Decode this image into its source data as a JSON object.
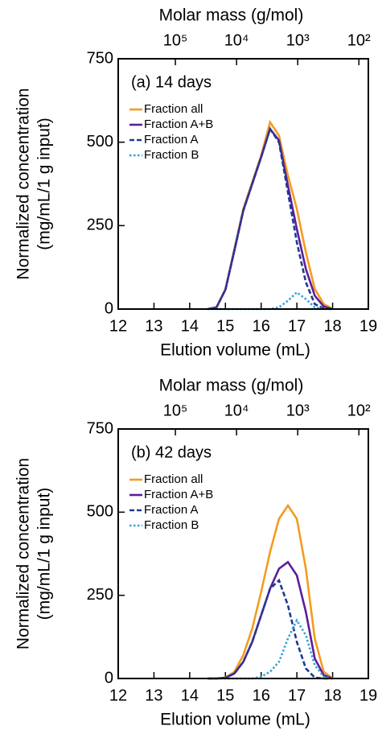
{
  "chart_data": [
    {
      "type": "line",
      "annotation": "(a) 14 days",
      "xlabel": "Elution volume (mL)",
      "ylabel": [
        "Normalized concentration",
        "(mg/mL/1 g input)"
      ],
      "x2label": "Molar mass (g/mol)",
      "x2scale": "log",
      "xlim": [
        12,
        19
      ],
      "xticks": [
        12,
        13,
        14,
        15,
        16,
        17,
        18,
        19
      ],
      "x2lim": [
        860000,
        70
      ],
      "x2ticks": [
        {
          "value": 100000,
          "label": "10⁵"
        },
        {
          "value": 10000,
          "label": "10⁴"
        },
        {
          "value": 1000,
          "label": "10³"
        },
        {
          "value": 100,
          "label": "10²"
        }
      ],
      "ylim": [
        0,
        750
      ],
      "yticks": [
        0,
        250,
        500,
        750
      ],
      "x": [
        14.5,
        14.75,
        15.0,
        15.25,
        15.5,
        15.75,
        16.0,
        16.25,
        16.5,
        16.75,
        17.0,
        17.25,
        17.5,
        17.75,
        18.0
      ],
      "series": [
        {
          "name": "Fraction all",
          "color": "#f39c1f",
          "dash": "solid",
          "values": [
            0,
            5,
            60,
            180,
            300,
            380,
            460,
            560,
            520,
            400,
            300,
            170,
            60,
            15,
            0
          ]
        },
        {
          "name": "Fraction A+B",
          "color": "#5b1f99",
          "dash": "solid",
          "values": [
            0,
            5,
            58,
            175,
            295,
            375,
            455,
            540,
            505,
            370,
            240,
            120,
            40,
            8,
            0
          ]
        },
        {
          "name": "Fraction A",
          "color": "#1f3a93",
          "dash": "dashed",
          "values": [
            0,
            5,
            58,
            175,
            295,
            375,
            455,
            540,
            500,
            350,
            200,
            80,
            15,
            2,
            0
          ]
        },
        {
          "name": "Fraction B",
          "color": "#36a3d9",
          "dash": "dotted",
          "values": [
            0,
            0,
            0,
            0,
            0,
            0,
            0,
            0,
            5,
            25,
            50,
            30,
            5,
            0,
            0
          ]
        }
      ]
    },
    {
      "type": "line",
      "annotation": "(b) 42 days",
      "xlabel": "Elution volume (mL)",
      "ylabel": [
        "Normalized concentration",
        "(mg/mL/1 g input)"
      ],
      "x2label": "Molar mass (g/mol)",
      "x2scale": "log",
      "xlim": [
        12,
        19
      ],
      "xticks": [
        12,
        13,
        14,
        15,
        16,
        17,
        18,
        19
      ],
      "x2lim": [
        860000,
        70
      ],
      "x2ticks": [
        {
          "value": 100000,
          "label": "10⁵"
        },
        {
          "value": 10000,
          "label": "10⁴"
        },
        {
          "value": 1000,
          "label": "10³"
        },
        {
          "value": 100,
          "label": "10²"
        }
      ],
      "ylim": [
        0,
        750
      ],
      "yticks": [
        0,
        250,
        500,
        750
      ],
      "x": [
        14.5,
        14.75,
        15.0,
        15.25,
        15.5,
        15.75,
        16.0,
        16.25,
        16.5,
        16.75,
        17.0,
        17.25,
        17.5,
        17.75,
        18.0
      ],
      "series": [
        {
          "name": "Fraction all",
          "color": "#f39c1f",
          "dash": "solid",
          "values": [
            0,
            0,
            3,
            20,
            70,
            150,
            260,
            380,
            480,
            520,
            480,
            330,
            120,
            20,
            0
          ]
        },
        {
          "name": "Fraction A+B",
          "color": "#5b1f99",
          "dash": "solid",
          "values": [
            0,
            0,
            2,
            15,
            50,
            110,
            190,
            270,
            330,
            350,
            310,
            200,
            60,
            10,
            0
          ]
        },
        {
          "name": "Fraction A",
          "color": "#1f3a93",
          "dash": "dashed",
          "values": [
            0,
            0,
            2,
            15,
            50,
            110,
            190,
            270,
            295,
            220,
            110,
            30,
            3,
            0,
            0
          ]
        },
        {
          "name": "Fraction B",
          "color": "#36a3d9",
          "dash": "dotted",
          "values": [
            0,
            0,
            0,
            0,
            0,
            0,
            5,
            20,
            50,
            120,
            175,
            130,
            40,
            5,
            0
          ]
        }
      ]
    }
  ]
}
